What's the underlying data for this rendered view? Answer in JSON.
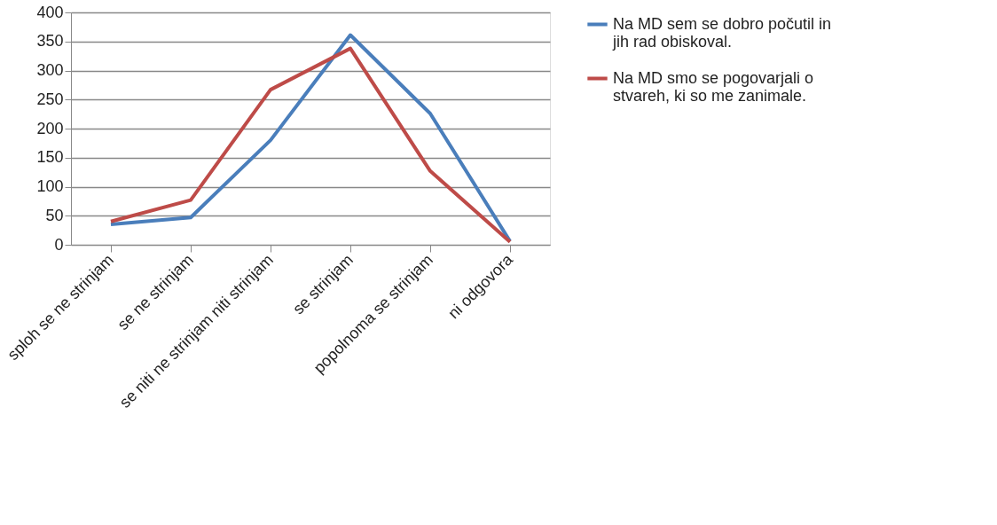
{
  "chart_data": {
    "type": "line",
    "categories": [
      "sploh se ne strinjam",
      "se ne strinjam",
      "se niti ne strinjam niti strinjam",
      "se strinjam",
      "popolnoma se strinjam",
      "ni odgovora"
    ],
    "series": [
      {
        "name": "Na MD sem se dobro počutil in jih rad obiskoval.",
        "color": "#4a7ebb",
        "values": [
          35,
          47,
          180,
          361,
          226,
          6
        ]
      },
      {
        "name": "Na MD smo se pogovarjali o stvareh, ki so me zanimale.",
        "color": "#be4b48",
        "values": [
          40,
          77,
          267,
          338,
          127,
          5
        ]
      }
    ],
    "ylim": [
      0,
      400
    ],
    "yticks": [
      0,
      50,
      100,
      150,
      200,
      250,
      300,
      350,
      400
    ],
    "grid": "y",
    "legend": "right",
    "marker": "none",
    "line_style": "solid"
  }
}
